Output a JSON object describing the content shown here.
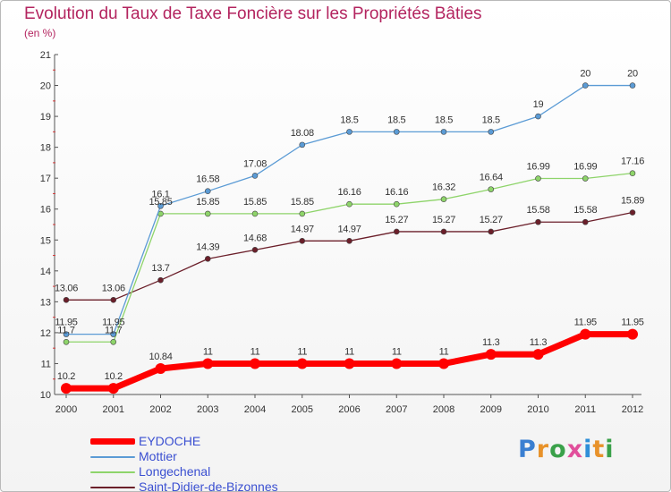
{
  "title": "Evolution du Taux de Taxe Foncière sur les Propriétés Bâties",
  "unit": "(en %)",
  "logo": {
    "text": "Proxiti",
    "colors": [
      "#3a7fd1",
      "#e8922a",
      "#3aa14a",
      "#e14f9b",
      "#2f8fd8",
      "#e8922a",
      "#3aa14a"
    ]
  },
  "chart_data": {
    "type": "line",
    "title": "Evolution du Taux de Taxe Foncière sur les Propriétés Bâties",
    "ylabel": "(en %)",
    "xlabel": "",
    "x": [
      "2000",
      "2001",
      "2002",
      "2003",
      "2004",
      "2005",
      "2006",
      "2007",
      "2008",
      "2009",
      "2010",
      "2011",
      "2012"
    ],
    "ylim": [
      10,
      21
    ],
    "yticks": [
      10,
      11,
      12,
      13,
      14,
      15,
      16,
      17,
      18,
      19,
      20,
      21
    ],
    "grid": false,
    "legend_position": "bottom-left",
    "series": [
      {
        "name": "EYDOCHE",
        "color": "#ff0000",
        "values": [
          10.2,
          10.2,
          10.84,
          11,
          11,
          11,
          11,
          11,
          11,
          11.3,
          11.3,
          11.95,
          11.95
        ],
        "labels": [
          "10.2",
          "10.2",
          "10.84",
          "11",
          "11",
          "11",
          "11",
          "11",
          "11",
          "11.3",
          "11.3",
          "11.95",
          "11.95"
        ]
      },
      {
        "name": "Mottier",
        "color": "#5b9bd5",
        "values": [
          11.95,
          11.95,
          16.1,
          16.58,
          17.08,
          18.08,
          18.5,
          18.5,
          18.5,
          18.5,
          19,
          20,
          20
        ],
        "labels": [
          "11.95",
          "11.95",
          "16.1",
          "16.58",
          "17.08",
          "18.08",
          "18.5",
          "18.5",
          "18.5",
          "18.5",
          "19",
          "20",
          "20"
        ]
      },
      {
        "name": "Longechenal",
        "color": "#8ed46a",
        "values": [
          11.7,
          11.7,
          15.85,
          15.85,
          15.85,
          15.85,
          16.16,
          16.16,
          16.32,
          16.64,
          16.99,
          16.99,
          17.16
        ],
        "labels": [
          "11.7",
          "11.7",
          "15.85",
          "15.85",
          "15.85",
          "15.85",
          "16.16",
          "16.16",
          "16.32",
          "16.64",
          "16.99",
          "16.99",
          "17.16"
        ]
      },
      {
        "name": "Saint-Didier-de-Bizonnes",
        "color": "#6b1f2a",
        "values": [
          13.06,
          13.06,
          13.7,
          14.39,
          14.68,
          14.97,
          14.97,
          15.27,
          15.27,
          15.27,
          15.58,
          15.58,
          15.89
        ],
        "labels": [
          "13.06",
          "13.06",
          "13.7",
          "14.39",
          "14.68",
          "14.97",
          "14.97",
          "15.27",
          "15.27",
          "15.27",
          "15.58",
          "15.58",
          "15.89"
        ]
      }
    ]
  }
}
